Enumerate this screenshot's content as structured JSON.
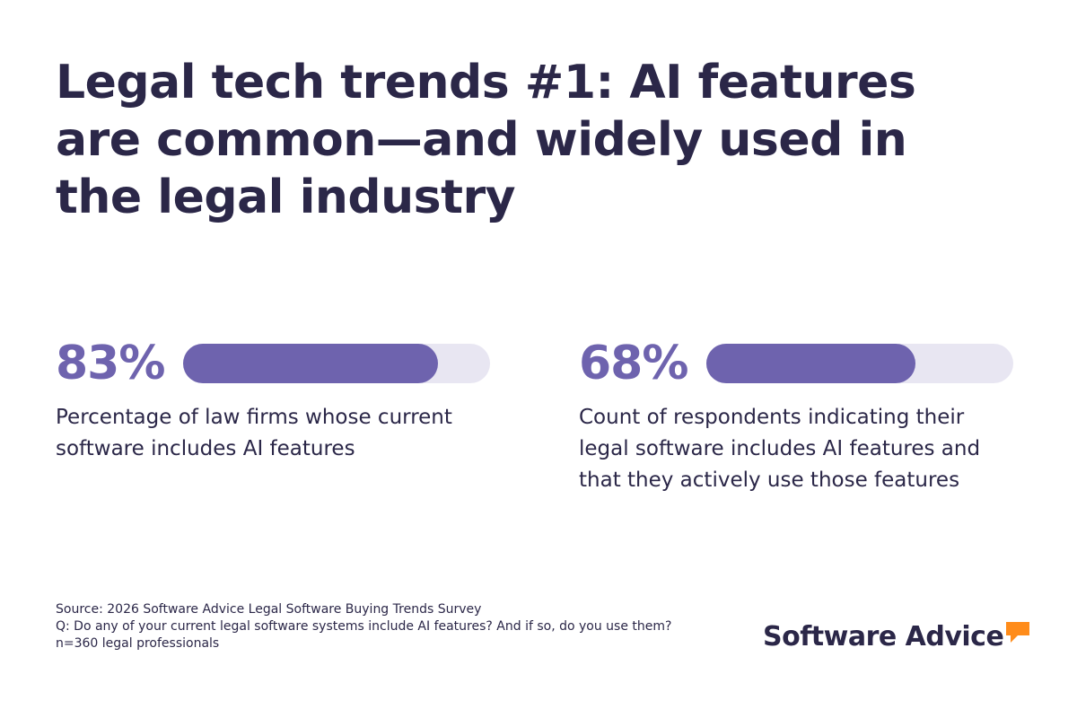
{
  "title": "Legal tech trends #1: AI features are common—and widely used in the legal industry",
  "chart_data": {
    "type": "bar",
    "stats": [
      {
        "label": "83%",
        "value": 83,
        "max": 100,
        "description": "Percentage of law firms whose current software includes AI features"
      },
      {
        "label": "68%",
        "value": 68,
        "max": 100,
        "description": "Count of respondents indicating their legal software includes AI features and that they actively use those features"
      }
    ],
    "colors": {
      "fill": "#6e63ae",
      "track": "#e8e6f2"
    }
  },
  "footer": {
    "source": "Source: 2026 Software Advice Legal Software Buying Trends Survey",
    "question": "Q: Do any of your current legal software systems include AI features? And if so, do you use them?",
    "sample": "n=360 legal professionals"
  },
  "logo": {
    "text": "Software Advice",
    "icon": "speech-bubble-icon",
    "icon_color": "#ff8c1a"
  }
}
